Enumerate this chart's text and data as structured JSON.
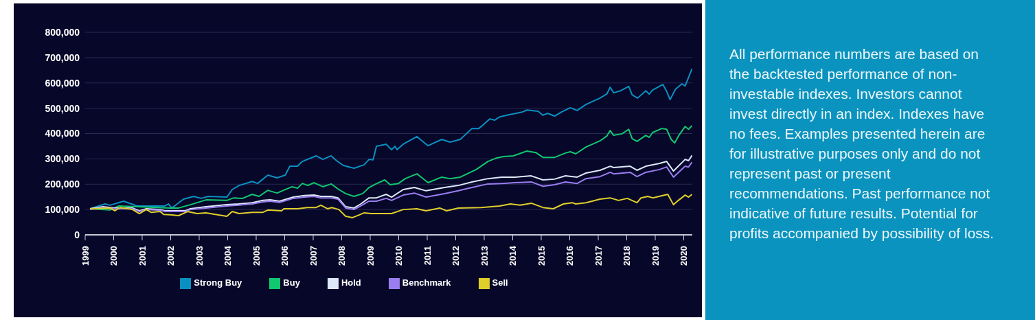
{
  "chart_data": {
    "type": "line",
    "legend": "bottom",
    "grid": "y",
    "marker": "none",
    "line_style": "solid",
    "xlim": [
      1999,
      2020.3
    ],
    "xticks": [
      1999,
      2000,
      2001,
      2002,
      2003,
      2004,
      2005,
      2006,
      2007,
      2008,
      2009,
      2010,
      2011,
      2012,
      2013,
      2014,
      2015,
      2016,
      2017,
      2018,
      2019,
      2020
    ],
    "ylim": [
      0,
      800000
    ],
    "yticks": [
      0,
      {
        "value": 100000,
        "label": "100,000"
      },
      {
        "value": 200000,
        "label": "200,000"
      },
      {
        "value": 300000,
        "label": "300,000"
      },
      {
        "value": 400000,
        "label": "400,000"
      },
      {
        "value": 500000,
        "label": "500,000"
      },
      {
        "value": 600000,
        "label": "600,000"
      },
      {
        "value": 700000,
        "label": "700,000"
      },
      {
        "value": 800000,
        "label": "800,000"
      }
    ],
    "annotations": [
      "All performance numbers are based on the backtested performance of non-investable indexes. Investors cannot invest directly in an index. Indexes have no fees. Examples presented herein are for illustrative purposes only and do not represent past or present recommendations. Past performance not indicative of future results. Potential for profits accompanied by possibility of loss."
    ],
    "series": [
      {
        "name": "Strong Buy",
        "color": "#0a90c0",
        "x": [
          1999.17,
          1999.7,
          1999.87,
          2000.35,
          2000.83,
          2001.8,
          2001.92,
          2002.04,
          2002.45,
          2002.81,
          2003.07,
          2003.32,
          2003.97,
          2004.16,
          2004.4,
          2004.86,
          2005.05,
          2005.41,
          2005.73,
          2006.02,
          2006.18,
          2006.45,
          2006.62,
          2007.1,
          2007.34,
          2007.63,
          2007.82,
          2008.06,
          2008.43,
          2008.79,
          2008.96,
          2009.1,
          2009.22,
          2009.56,
          2009.75,
          2009.87,
          2009.94,
          2010.16,
          2010.64,
          2011.03,
          2011.51,
          2011.8,
          2012.16,
          2012.57,
          2012.81,
          2012.96,
          2013.2,
          2013.37,
          2013.54,
          2013.85,
          2014.33,
          2014.5,
          2014.89,
          2015.06,
          2015.22,
          2015.47,
          2015.71,
          2016.02,
          2016.26,
          2016.57,
          2017.06,
          2017.3,
          2017.42,
          2017.54,
          2017.78,
          2018.07,
          2018.19,
          2018.38,
          2018.67,
          2018.79,
          2018.91,
          2019.27,
          2019.4,
          2019.52,
          2019.71,
          2019.93,
          2020.05,
          2020.29
        ],
        "values": [
          103000,
          122000,
          117000,
          133000,
          114000,
          114000,
          122000,
          106000,
          141000,
          152000,
          144000,
          152000,
          149000,
          179000,
          195000,
          211000,
          203000,
          236000,
          225000,
          236000,
          271000,
          271000,
          290000,
          312000,
          298000,
          312000,
          293000,
          274000,
          263000,
          277000,
          298000,
          296000,
          350000,
          358000,
          336000,
          350000,
          336000,
          358000,
          388000,
          352000,
          377000,
          366000,
          377000,
          420000,
          420000,
          434000,
          458000,
          453000,
          466000,
          474000,
          485000,
          493000,
          488000,
          472000,
          480000,
          469000,
          485000,
          502000,
          491000,
          515000,
          540000,
          556000,
          583000,
          561000,
          569000,
          586000,
          553000,
          540000,
          569000,
          556000,
          572000,
          594000,
          567000,
          534000,
          575000,
          596000,
          588000,
          656000
        ]
      },
      {
        "name": "Buy",
        "color": "#10c870",
        "x": [
          1999.17,
          1999.87,
          2000.18,
          2000.83,
          2001.97,
          2002.28,
          2002.69,
          2003.24,
          2003.97,
          2004.21,
          2004.52,
          2004.86,
          2005.1,
          2005.41,
          2005.73,
          2006.26,
          2006.45,
          2006.62,
          2006.81,
          2007.03,
          2007.34,
          2007.63,
          2007.9,
          2008.14,
          2008.43,
          2008.74,
          2008.96,
          2009.2,
          2009.51,
          2009.7,
          2009.99,
          2010.23,
          2010.64,
          2011.03,
          2011.51,
          2011.8,
          2012.16,
          2012.72,
          2013.13,
          2013.44,
          2013.68,
          2014.02,
          2014.5,
          2014.81,
          2015.06,
          2015.47,
          2015.85,
          2016.02,
          2016.21,
          2016.57,
          2017.06,
          2017.3,
          2017.42,
          2017.54,
          2017.83,
          2018.07,
          2018.19,
          2018.36,
          2018.67,
          2018.79,
          2018.91,
          2019.23,
          2019.4,
          2019.56,
          2019.68,
          2019.83,
          2020.05,
          2020.17,
          2020.29
        ],
        "values": [
          103000,
          98000,
          114000,
          111000,
          106000,
          106000,
          119000,
          138000,
          136000,
          146000,
          144000,
          160000,
          152000,
          176000,
          165000,
          190000,
          184000,
          203000,
          195000,
          206000,
          190000,
          201000,
          179000,
          163000,
          152000,
          163000,
          187000,
          201000,
          217000,
          198000,
          203000,
          222000,
          241000,
          206000,
          228000,
          222000,
          228000,
          258000,
          290000,
          304000,
          309000,
          312000,
          331000,
          325000,
          306000,
          306000,
          323000,
          328000,
          320000,
          347000,
          371000,
          390000,
          412000,
          393000,
          399000,
          417000,
          380000,
          369000,
          393000,
          385000,
          404000,
          420000,
          417000,
          377000,
          363000,
          393000,
          428000,
          417000,
          431000
        ]
      },
      {
        "name": "Hold",
        "color": "#dde8f8",
        "x": [
          1999.17,
          1999.63,
          2000.04,
          2000.66,
          2000.9,
          2001.15,
          2001.63,
          2001.8,
          2002.21,
          2002.52,
          2002.69,
          2003.24,
          2003.97,
          2004.38,
          2004.86,
          2005.24,
          2005.49,
          2005.82,
          2006.3,
          2006.69,
          2007.03,
          2007.27,
          2007.63,
          2007.87,
          2008.14,
          2008.43,
          2008.67,
          2008.96,
          2009.22,
          2009.56,
          2009.75,
          2010.16,
          2010.55,
          2010.96,
          2011.61,
          2012.09,
          2012.57,
          2013.13,
          2013.61,
          2014.09,
          2014.65,
          2015.06,
          2015.47,
          2015.85,
          2016.26,
          2016.57,
          2017.06,
          2017.42,
          2017.54,
          2018.12,
          2018.36,
          2018.67,
          2019.15,
          2019.4,
          2019.64,
          2020.05,
          2020.17,
          2020.29
        ],
        "values": [
          103000,
          111000,
          106000,
          106000,
          95000,
          103000,
          100000,
          95000,
          95000,
          95000,
          103000,
          111000,
          119000,
          122000,
          127000,
          136000,
          138000,
          133000,
          149000,
          155000,
          157000,
          152000,
          152000,
          146000,
          111000,
          106000,
          122000,
          146000,
          146000,
          160000,
          149000,
          179000,
          187000,
          174000,
          187000,
          195000,
          209000,
          222000,
          228000,
          228000,
          233000,
          217000,
          220000,
          233000,
          228000,
          244000,
          255000,
          271000,
          266000,
          271000,
          255000,
          271000,
          282000,
          290000,
          252000,
          298000,
          293000,
          314000
        ]
      },
      {
        "name": "Benchmark",
        "color": "#9a7ef0",
        "x": [
          1999.17,
          1999.63,
          2000.04,
          2000.66,
          2000.9,
          2001.15,
          2001.63,
          2001.8,
          2002.21,
          2002.52,
          2002.69,
          2003.24,
          2003.97,
          2004.38,
          2004.86,
          2005.24,
          2005.49,
          2005.82,
          2006.3,
          2006.69,
          2007.03,
          2007.27,
          2007.63,
          2007.87,
          2008.14,
          2008.43,
          2008.67,
          2008.96,
          2009.22,
          2009.56,
          2009.75,
          2010.16,
          2010.55,
          2010.96,
          2011.61,
          2012.09,
          2012.57,
          2013.13,
          2013.61,
          2014.09,
          2014.65,
          2015.06,
          2015.47,
          2015.85,
          2016.26,
          2016.57,
          2017.06,
          2017.42,
          2017.54,
          2018.12,
          2018.36,
          2018.67,
          2019.15,
          2019.4,
          2019.64,
          2020.05,
          2020.17,
          2020.29
        ],
        "values": [
          100000,
          108000,
          103000,
          103000,
          92000,
          100000,
          97000,
          92000,
          92000,
          92000,
          100000,
          106000,
          114000,
          117000,
          122000,
          130000,
          133000,
          128000,
          144000,
          149000,
          152000,
          146000,
          146000,
          141000,
          106000,
          100000,
          114000,
          133000,
          133000,
          144000,
          136000,
          157000,
          165000,
          149000,
          163000,
          174000,
          187000,
          201000,
          203000,
          206000,
          209000,
          192000,
          198000,
          209000,
          203000,
          222000,
          230000,
          247000,
          241000,
          247000,
          230000,
          247000,
          258000,
          268000,
          228000,
          271000,
          268000,
          287000
        ]
      },
      {
        "name": "Sell",
        "color": "#e0cf2a",
        "x": [
          1999.17,
          1999.87,
          2000.04,
          2000.23,
          2000.66,
          2000.9,
          2001.15,
          2001.31,
          2001.63,
          2001.75,
          2001.97,
          2002.28,
          2002.59,
          2002.93,
          2003.24,
          2003.97,
          2004.16,
          2004.4,
          2004.86,
          2005.24,
          2005.41,
          2005.89,
          2005.97,
          2006.45,
          2006.79,
          2007.1,
          2007.27,
          2007.51,
          2007.65,
          2007.9,
          2008.14,
          2008.38,
          2008.62,
          2008.79,
          2009.03,
          2009.75,
          2010.16,
          2010.64,
          2010.96,
          2011.44,
          2011.68,
          2012.09,
          2012.89,
          2013.54,
          2013.92,
          2014.26,
          2014.65,
          2015.06,
          2015.42,
          2015.78,
          2016.09,
          2016.21,
          2016.57,
          2017.06,
          2017.42,
          2017.71,
          2018.02,
          2018.36,
          2018.5,
          2018.74,
          2018.91,
          2019.44,
          2019.64,
          2019.81,
          2020.05,
          2020.17,
          2020.29
        ],
        "values": [
          103000,
          106000,
          95000,
          108000,
          100000,
          84000,
          100000,
          89000,
          92000,
          81000,
          79000,
          76000,
          92000,
          84000,
          87000,
          73000,
          92000,
          84000,
          89000,
          89000,
          98000,
          95000,
          103000,
          103000,
          108000,
          108000,
          117000,
          103000,
          108000,
          100000,
          73000,
          68000,
          79000,
          87000,
          84000,
          84000,
          100000,
          103000,
          95000,
          106000,
          95000,
          106000,
          108000,
          114000,
          122000,
          117000,
          125000,
          108000,
          103000,
          122000,
          127000,
          122000,
          127000,
          141000,
          146000,
          136000,
          144000,
          127000,
          146000,
          152000,
          146000,
          160000,
          119000,
          136000,
          157000,
          149000,
          160000
        ]
      }
    ]
  }
}
